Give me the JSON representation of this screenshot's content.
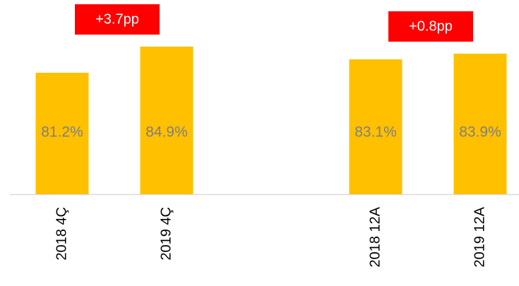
{
  "chart_data": {
    "type": "bar",
    "categories": [
      "2018 4Ç",
      "2019 4Ç",
      null,
      "2018 12A",
      "2019 12A"
    ],
    "values": [
      81.2,
      84.9,
      null,
      83.1,
      83.9
    ],
    "value_labels": [
      "81.2%",
      "84.9%",
      null,
      "83.1%",
      "83.9%"
    ],
    "color": "#ffc000",
    "annotations": [
      "+3.7pp",
      "+0.8pp"
    ],
    "annotation_color": "#ff0000",
    "ylim": [
      64,
      91
    ]
  }
}
